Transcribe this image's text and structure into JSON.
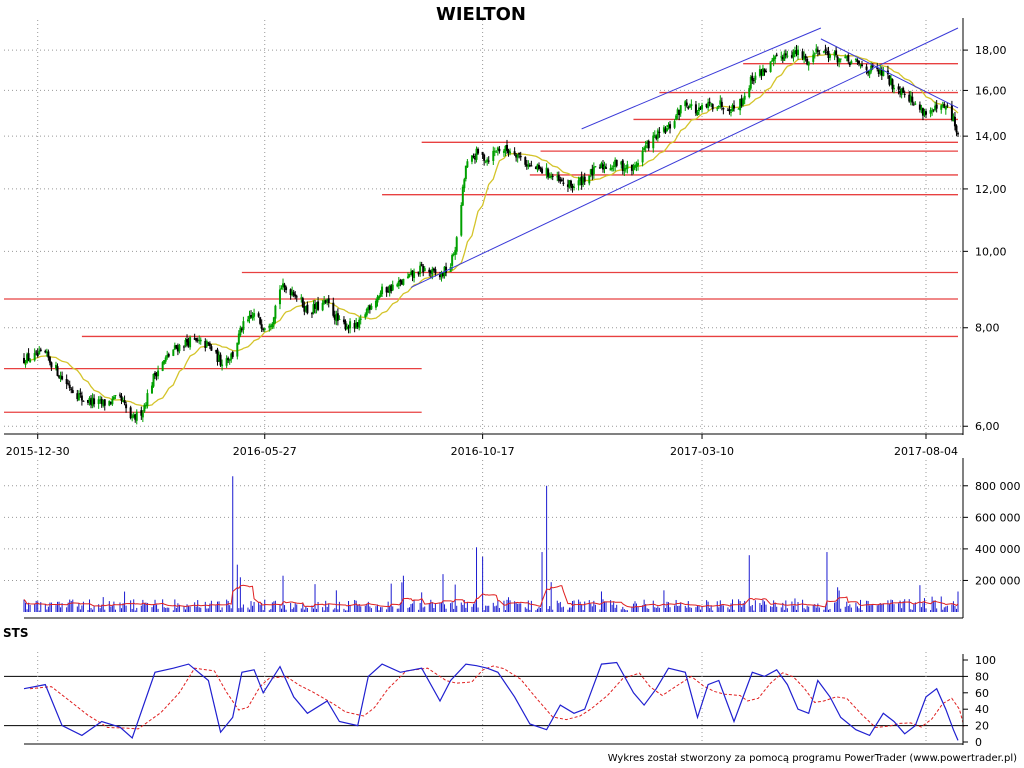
{
  "title": "WIELTON",
  "footer": "Wykres został stworzony za pomocą programu PowerTrader (www.powertrader.pl)",
  "colors": {
    "candle_up": "#00a000",
    "candle_down": "#000000",
    "ma": "#d4c42a",
    "support": "#e84040",
    "trend": "#3a3ad8",
    "volume": "#1a1ad0",
    "volume_avg": "#e02020",
    "sts_k": "#2020d0",
    "sts_d": "#e02020",
    "grid": "#999999"
  },
  "chart_data": [
    {
      "type": "candlestick",
      "title": "WIELTON",
      "scale": "log",
      "ylim": [
        5.9,
        19.2
      ],
      "y_ticks": [
        "6,00",
        "8,00",
        "10,00",
        "12,00",
        "14,00",
        "16,00",
        "18,00"
      ],
      "y_tick_values": [
        6,
        8,
        10,
        12,
        14,
        16,
        18
      ],
      "x_ticks": [
        "2015-12-30",
        "2016-05-27",
        "2016-10-17",
        "2017-03-10",
        "2017-08-04"
      ],
      "x_range": [
        "2015-12-21",
        "2017-08-25"
      ],
      "price_path": [
        [
          "2015-12-21",
          7.3
        ],
        [
          "2016-01-04",
          7.4
        ],
        [
          "2016-01-15",
          6.9
        ],
        [
          "2016-01-28",
          6.5
        ],
        [
          "2016-02-10",
          6.4
        ],
        [
          "2016-02-22",
          6.5
        ],
        [
          "2016-03-01",
          6.1
        ],
        [
          "2016-03-08",
          6.3
        ],
        [
          "2016-03-16",
          7.0
        ],
        [
          "2016-03-28",
          7.5
        ],
        [
          "2016-04-07",
          7.7
        ],
        [
          "2016-04-20",
          7.6
        ],
        [
          "2016-04-28",
          7.25
        ],
        [
          "2016-05-06",
          7.4
        ],
        [
          "2016-05-12",
          8.0
        ],
        [
          "2016-05-20",
          8.3
        ],
        [
          "2016-05-26",
          8.05
        ],
        [
          "2016-06-01",
          8.2
        ],
        [
          "2016-06-06",
          9.0
        ],
        [
          "2016-06-15",
          8.9
        ],
        [
          "2016-06-24",
          8.4
        ],
        [
          "2016-07-07",
          8.6
        ],
        [
          "2016-07-15",
          8.1
        ],
        [
          "2016-07-27",
          8.0
        ],
        [
          "2016-08-03",
          8.5
        ],
        [
          "2016-08-12",
          8.9
        ],
        [
          "2016-08-24",
          9.1
        ],
        [
          "2016-09-07",
          9.5
        ],
        [
          "2016-09-19",
          9.3
        ],
        [
          "2016-09-26",
          9.6
        ],
        [
          "2016-09-30",
          10.3
        ],
        [
          "2016-10-03",
          11.5
        ],
        [
          "2016-10-06",
          12.8
        ],
        [
          "2016-10-13",
          13.3
        ],
        [
          "2016-10-20",
          13.1
        ],
        [
          "2016-10-27",
          13.5
        ],
        [
          "2016-11-07",
          13.4
        ],
        [
          "2016-11-17",
          12.8
        ],
        [
          "2016-11-28",
          12.6
        ],
        [
          "2016-12-07",
          12.2
        ],
        [
          "2016-12-16",
          12.1
        ],
        [
          "2016-12-23",
          12.4
        ],
        [
          "2017-01-03",
          12.8
        ],
        [
          "2017-01-13",
          12.9
        ],
        [
          "2017-01-24",
          12.7
        ],
        [
          "2017-01-31",
          13.5
        ],
        [
          "2017-02-08",
          14.0
        ],
        [
          "2017-02-16",
          14.3
        ],
        [
          "2017-02-27",
          15.5
        ],
        [
          "2017-03-07",
          15.0
        ],
        [
          "2017-03-14",
          15.3
        ],
        [
          "2017-03-21",
          15.4
        ],
        [
          "2017-03-31",
          15.2
        ],
        [
          "2017-04-05",
          15.5
        ],
        [
          "2017-04-12",
          16.6
        ],
        [
          "2017-04-20",
          17.0
        ],
        [
          "2017-04-28",
          17.5
        ],
        [
          "2017-05-05",
          17.9
        ],
        [
          "2017-05-12",
          17.8
        ],
        [
          "2017-05-19",
          17.4
        ],
        [
          "2017-05-25",
          18.1
        ],
        [
          "2017-06-02",
          17.8
        ],
        [
          "2017-06-09",
          17.5
        ],
        [
          "2017-06-19",
          17.3
        ],
        [
          "2017-06-28",
          17.0
        ],
        [
          "2017-07-07",
          16.8
        ],
        [
          "2017-07-14",
          16.2
        ],
        [
          "2017-07-21",
          16.0
        ],
        [
          "2017-07-28",
          15.3
        ],
        [
          "2017-08-04",
          15.0
        ],
        [
          "2017-08-11",
          15.1
        ],
        [
          "2017-08-17",
          15.2
        ],
        [
          "2017-08-22",
          14.7
        ],
        [
          "2017-08-25",
          14.0
        ]
      ],
      "support_lines": [
        {
          "price": 6.25,
          "from": "2015-12-21",
          "to": "2016-09-07"
        },
        {
          "price": 7.1,
          "from": "2015-12-21",
          "to": "2016-09-07"
        },
        {
          "price": 7.8,
          "from": "2016-01-28",
          "to": "2017-08-25"
        },
        {
          "price": 8.7,
          "from": "2015-12-21",
          "to": "2017-08-25"
        },
        {
          "price": 9.4,
          "from": "2016-05-12",
          "to": "2017-08-25"
        },
        {
          "price": 11.8,
          "from": "2016-08-12",
          "to": "2017-08-25"
        },
        {
          "price": 12.5,
          "from": "2016-11-17",
          "to": "2017-08-25"
        },
        {
          "price": 13.4,
          "from": "2016-11-24",
          "to": "2017-08-25"
        },
        {
          "price": 13.75,
          "from": "2016-09-07",
          "to": "2017-08-25"
        },
        {
          "price": 14.7,
          "from": "2017-01-24",
          "to": "2017-08-25"
        },
        {
          "price": 15.9,
          "from": "2017-02-10",
          "to": "2017-08-25"
        },
        {
          "price": 17.3,
          "from": "2017-04-06",
          "to": "2017-08-25"
        }
      ],
      "trend_lines": [
        {
          "from": [
            "2016-08-31",
            9.0
          ],
          "to": [
            "2017-08-25",
            19.2
          ]
        },
        {
          "from": [
            "2016-12-21",
            14.3
          ],
          "to": [
            "2017-05-27",
            19.2
          ]
        },
        {
          "from": [
            "2017-05-27",
            18.6
          ],
          "to": [
            "2017-08-25",
            15.2
          ]
        }
      ]
    },
    {
      "type": "bar",
      "title": "",
      "ylim": [
        0,
        900000
      ],
      "y_ticks": [
        "200 000",
        "400 000",
        "600 000",
        "800 000"
      ],
      "y_tick_values": [
        200000,
        400000,
        600000,
        800000
      ],
      "spikes": [
        [
          "2016-05-06",
          860000
        ],
        [
          "2016-05-09",
          300000
        ],
        [
          "2016-05-11",
          220000
        ],
        [
          "2016-06-08",
          230000
        ],
        [
          "2016-10-13",
          410000
        ],
        [
          "2016-10-17",
          350000
        ],
        [
          "2016-11-28",
          800000
        ],
        [
          "2016-11-25",
          380000
        ],
        [
          "2016-08-26",
          230000
        ],
        [
          "2016-09-21",
          240000
        ],
        [
          "2017-04-10",
          360000
        ],
        [
          "2017-05-31",
          380000
        ],
        [
          "2017-07-31",
          170000
        ],
        [
          "2017-08-25",
          130000
        ]
      ],
      "baseline_level": 45000,
      "average_level": 75000
    },
    {
      "type": "line",
      "title": "STS",
      "ylim": [
        0,
        100
      ],
      "y_ticks": [
        "0",
        "20",
        "40",
        "60",
        "80",
        "100"
      ],
      "y_tick_values": [
        0,
        20,
        40,
        60,
        80,
        100
      ],
      "levels": [
        20,
        80
      ],
      "series": [
        {
          "name": "",
          "points": [
            [
              "2015-12-21",
              65
            ],
            [
              "2016-01-04",
              70
            ],
            [
              "2016-01-15",
              20
            ],
            [
              "2016-01-28",
              8
            ],
            [
              "2016-02-10",
              25
            ],
            [
              "2016-02-22",
              18
            ],
            [
              "2016-03-01",
              5
            ],
            [
              "2016-03-16",
              85
            ],
            [
              "2016-03-28",
              90
            ],
            [
              "2016-04-07",
              95
            ],
            [
              "2016-04-20",
              75
            ],
            [
              "2016-04-28",
              12
            ],
            [
              "2016-05-06",
              30
            ],
            [
              "2016-05-12",
              85
            ],
            [
              "2016-05-20",
              88
            ],
            [
              "2016-05-26",
              60
            ],
            [
              "2016-06-06",
              92
            ],
            [
              "2016-06-15",
              55
            ],
            [
              "2016-06-24",
              35
            ],
            [
              "2016-07-07",
              50
            ],
            [
              "2016-07-15",
              25
            ],
            [
              "2016-07-27",
              20
            ],
            [
              "2016-08-03",
              80
            ],
            [
              "2016-08-12",
              95
            ],
            [
              "2016-08-24",
              85
            ],
            [
              "2016-09-07",
              90
            ],
            [
              "2016-09-19",
              50
            ],
            [
              "2016-09-26",
              75
            ],
            [
              "2016-10-06",
              95
            ],
            [
              "2016-10-13",
              93
            ],
            [
              "2016-10-20",
              90
            ],
            [
              "2016-10-27",
              85
            ],
            [
              "2016-11-07",
              55
            ],
            [
              "2016-11-17",
              22
            ],
            [
              "2016-11-28",
              15
            ],
            [
              "2016-12-07",
              45
            ],
            [
              "2016-12-16",
              35
            ],
            [
              "2016-12-23",
              40
            ],
            [
              "2017-01-03",
              95
            ],
            [
              "2017-01-13",
              97
            ],
            [
              "2017-01-24",
              60
            ],
            [
              "2017-01-31",
              45
            ],
            [
              "2017-02-08",
              65
            ],
            [
              "2017-02-16",
              90
            ],
            [
              "2017-02-27",
              85
            ],
            [
              "2017-03-07",
              30
            ],
            [
              "2017-03-14",
              70
            ],
            [
              "2017-03-21",
              75
            ],
            [
              "2017-03-31",
              25
            ],
            [
              "2017-04-05",
              50
            ],
            [
              "2017-04-12",
              85
            ],
            [
              "2017-04-20",
              80
            ],
            [
              "2017-04-28",
              88
            ],
            [
              "2017-05-05",
              70
            ],
            [
              "2017-05-12",
              40
            ],
            [
              "2017-05-19",
              35
            ],
            [
              "2017-05-25",
              75
            ],
            [
              "2017-06-02",
              55
            ],
            [
              "2017-06-09",
              30
            ],
            [
              "2017-06-19",
              15
            ],
            [
              "2017-06-28",
              8
            ],
            [
              "2017-07-07",
              35
            ],
            [
              "2017-07-14",
              25
            ],
            [
              "2017-07-21",
              10
            ],
            [
              "2017-07-28",
              20
            ],
            [
              "2017-08-04",
              55
            ],
            [
              "2017-08-11",
              65
            ],
            [
              "2017-08-17",
              40
            ],
            [
              "2017-08-22",
              15
            ],
            [
              "2017-08-25",
              2
            ]
          ]
        }
      ]
    }
  ]
}
